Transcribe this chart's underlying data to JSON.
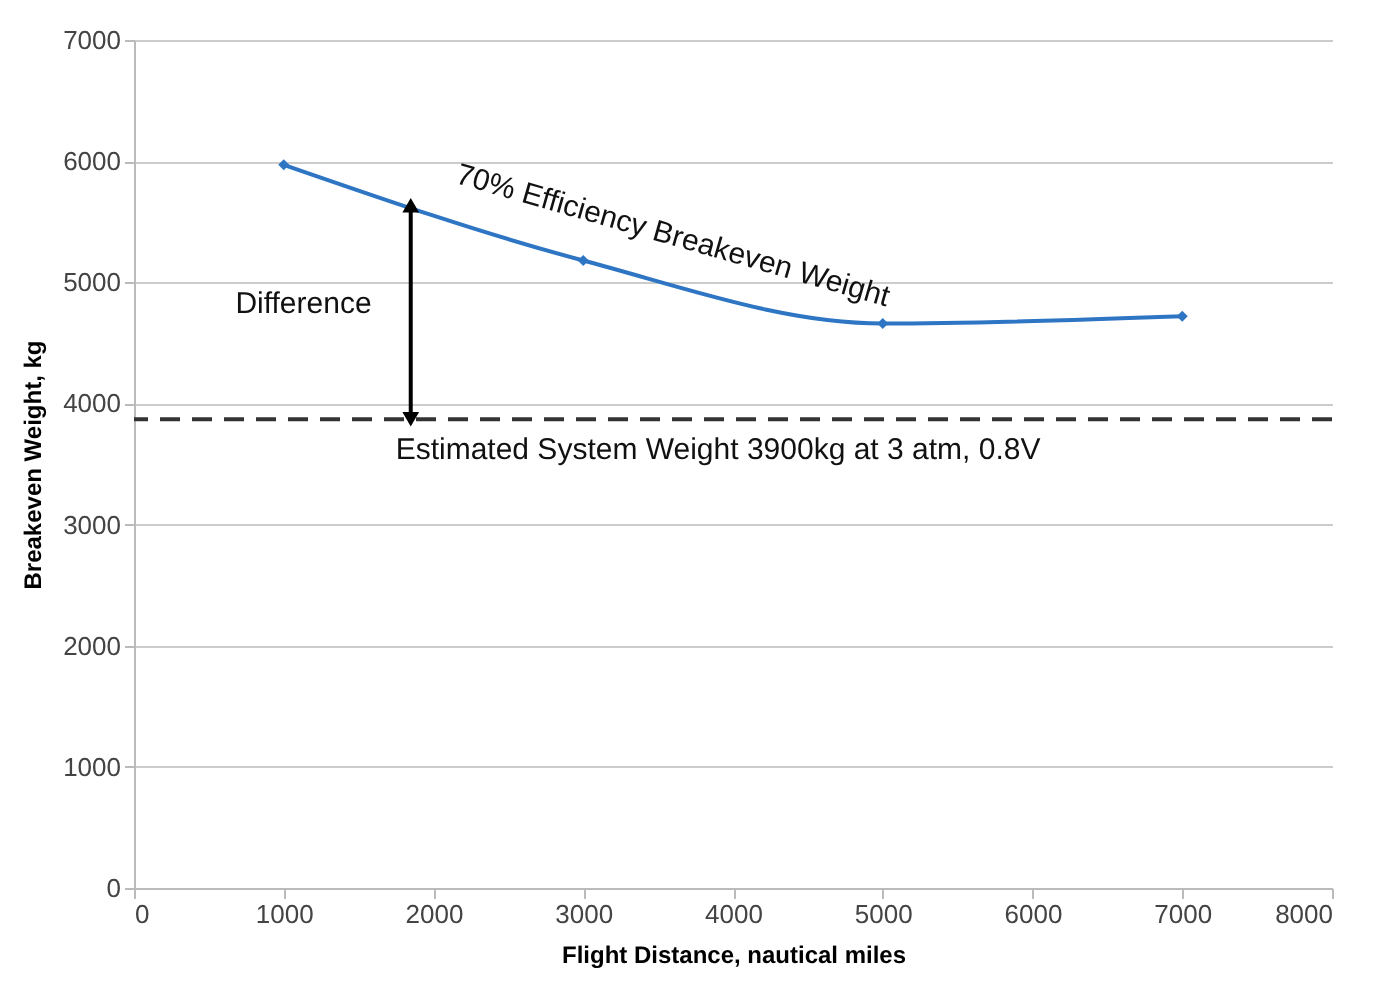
{
  "chart_data": {
    "type": "line",
    "xlabel": "Flight Distance, nautical miles",
    "ylabel": "Breakeven Weight, kg",
    "x": [
      1000,
      3000,
      5000,
      7000
    ],
    "series": [
      {
        "color": "#2e75c4",
        "values": [
          5970,
          5180,
          4660,
          4720
        ]
      }
    ],
    "marker": "diamond",
    "line_style": "solid",
    "xlim": [
      0,
      8000
    ],
    "xticks": [
      0,
      1000,
      2000,
      3000,
      4000,
      5000,
      6000,
      7000,
      8000
    ],
    "ylim": [
      0,
      7000
    ],
    "yticks": [
      0,
      1000,
      2000,
      3000,
      4000,
      5000,
      6000,
      7000
    ],
    "grid": "y",
    "ref_lines": [
      {
        "axis": "y",
        "value": 3870,
        "color": "#333333",
        "line_style": "dashed"
      }
    ],
    "annotations": [
      "70% Efficiency Breakeven Weight",
      "Difference",
      {
        "text": "Estimated System Weight 3900kg at 3 atm, 0.8V",
        "x": 3900,
        "y": 3870
      }
    ]
  }
}
